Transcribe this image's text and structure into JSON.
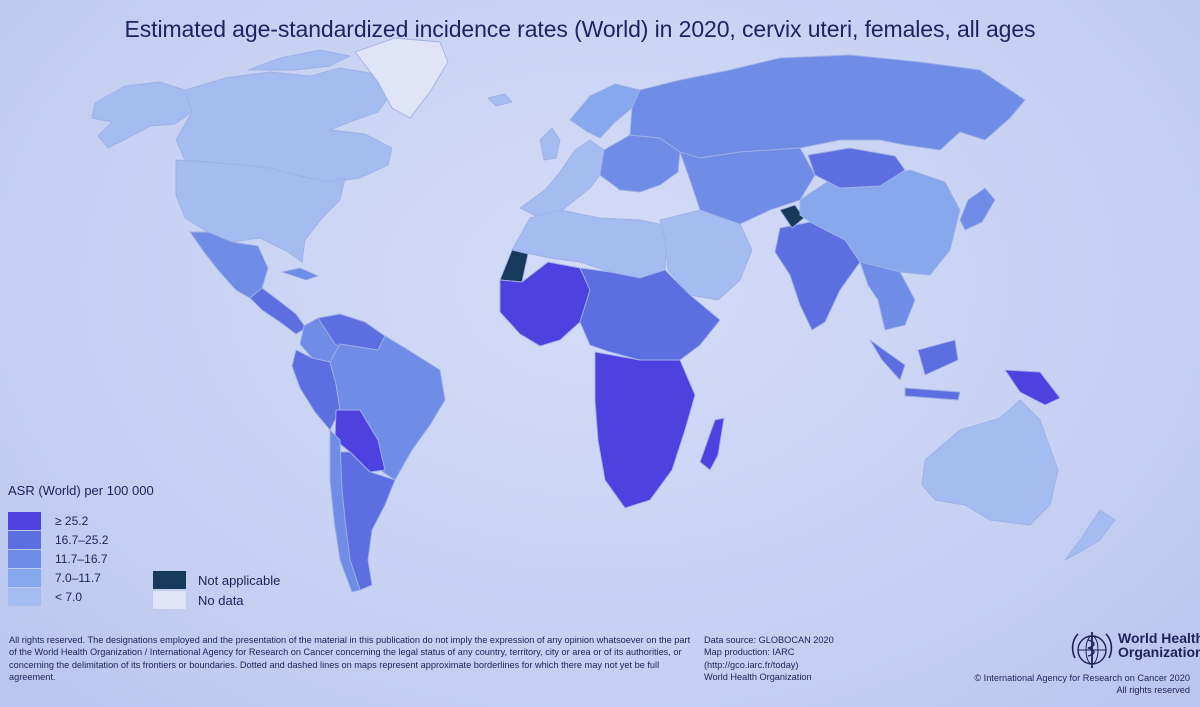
{
  "title": "Estimated age-standardized incidence rates (World) in 2020, cervix uteri, females, all ages",
  "legend": {
    "title": "ASR (World) per 100 000",
    "items": [
      {
        "label": "≥ 25.2",
        "color": "#4d42e0"
      },
      {
        "label": "16.7–25.2",
        "color": "#5d6ee0"
      },
      {
        "label": "11.7–16.7",
        "color": "#6f8ce6"
      },
      {
        "label": "7.0–11.7",
        "color": "#87a8ec"
      },
      {
        "label": "< 7.0",
        "color": "#a4bcf0"
      }
    ],
    "not_applicable": {
      "label": "Not applicable",
      "color": "#173a5c"
    },
    "no_data": {
      "label": "No data",
      "color": "#dfe5f7"
    }
  },
  "disclaimer": "All rights reserved. The designations employed and the presentation of the material in this publication do not imply the expression of any opinion whatsoever on the part of the World Health Organization / International Agency for Research on Cancer concerning the legal status of any country, territory, city or area or of its authorities, or concerning the delimitation of its frontiers or boundaries. Dotted and dashed lines on maps represent approximate borderlines for which there may not yet be full agreement.",
  "source": {
    "data_source": "Data source: GLOBOCAN 2020",
    "map_production": "Map production: IARC",
    "url": "(http://gco.iarc.fr/today)",
    "org": "World Health Organization"
  },
  "who": {
    "line1": "World Health",
    "line2": "Organization"
  },
  "copyright": {
    "line1": "© International Agency for Research on Cancer 2020",
    "line2": "All rights reserved"
  },
  "map_regions": [
    {
      "name": "canada",
      "rate_class": "< 7.0"
    },
    {
      "name": "alaska",
      "rate_class": "< 7.0"
    },
    {
      "name": "greenland",
      "rate_class": "No data"
    },
    {
      "name": "usa",
      "rate_class": "< 7.0"
    },
    {
      "name": "mexico",
      "rate_class": "11.7–16.7"
    },
    {
      "name": "central-america",
      "rate_class": "16.7–25.2"
    },
    {
      "name": "venezuela-guianas",
      "rate_class": "16.7–25.2"
    },
    {
      "name": "colombia",
      "rate_class": "11.7–16.7"
    },
    {
      "name": "peru",
      "rate_class": "16.7–25.2"
    },
    {
      "name": "brazil",
      "rate_class": "11.7–16.7"
    },
    {
      "name": "bolivia-paraguay",
      "rate_class": "≥ 25.2"
    },
    {
      "name": "argentina",
      "rate_class": "16.7–25.2"
    },
    {
      "name": "chile",
      "rate_class": "11.7–16.7"
    },
    {
      "name": "western-europe",
      "rate_class": "< 7.0"
    },
    {
      "name": "eastern-europe",
      "rate_class": "11.7–16.7"
    },
    {
      "name": "russia",
      "rate_class": "11.7–16.7"
    },
    {
      "name": "north-africa",
      "rate_class": "< 7.0"
    },
    {
      "name": "west-africa",
      "rate_class": "≥ 25.2"
    },
    {
      "name": "central-east-africa",
      "rate_class": "16.7–25.2"
    },
    {
      "name": "southern-africa",
      "rate_class": "≥ 25.2"
    },
    {
      "name": "madagascar",
      "rate_class": "≥ 25.2"
    },
    {
      "name": "middle-east",
      "rate_class": "< 7.0"
    },
    {
      "name": "central-asia",
      "rate_class": "11.7–16.7"
    },
    {
      "name": "india",
      "rate_class": "16.7–25.2"
    },
    {
      "name": "china",
      "rate_class": "7.0–11.7"
    },
    {
      "name": "mongolia",
      "rate_class": "16.7–25.2"
    },
    {
      "name": "southeast-asia",
      "rate_class": "11.7–16.7"
    },
    {
      "name": "indonesia",
      "rate_class": "16.7–25.2"
    },
    {
      "name": "papua-new-guinea",
      "rate_class": "≥ 25.2"
    },
    {
      "name": "japan",
      "rate_class": "11.7–16.7"
    },
    {
      "name": "australia",
      "rate_class": "< 7.0"
    },
    {
      "name": "new-zealand",
      "rate_class": "< 7.0"
    },
    {
      "name": "western-sahara",
      "rate_class": "Not applicable"
    },
    {
      "name": "kashmir",
      "rate_class": "Not applicable"
    }
  ]
}
